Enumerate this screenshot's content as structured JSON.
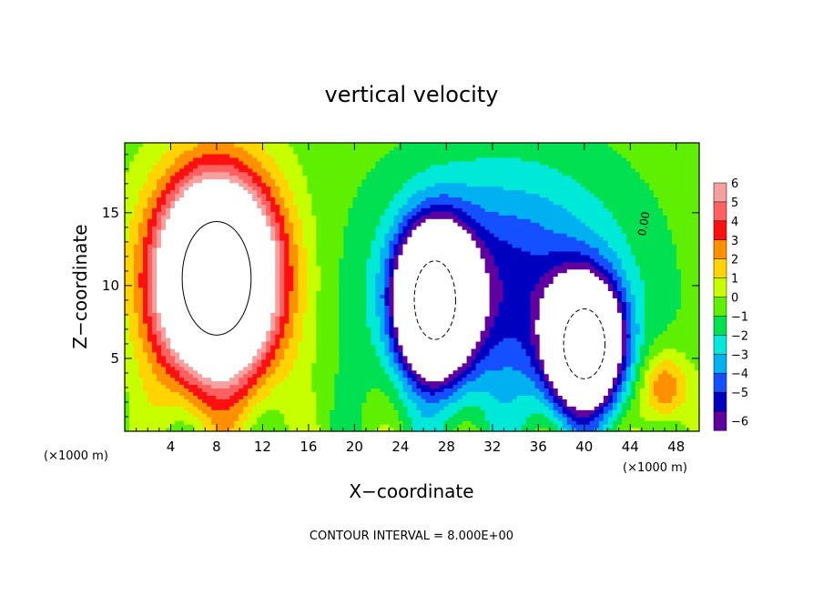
{
  "chart_data": {
    "type": "heatmap",
    "title": "vertical velocity",
    "xlabel": "X−coordinate",
    "ylabel": "Z−coordinate",
    "x_unit_label": "(×1000 m)",
    "x_unit_label_right": "(×1000 m)",
    "xlim": [
      0,
      50
    ],
    "ylim": [
      0,
      19.8
    ],
    "x_ticks": [
      4,
      8,
      12,
      16,
      20,
      24,
      28,
      32,
      36,
      40,
      44,
      48
    ],
    "y_ticks": [
      5,
      10,
      15
    ],
    "footer": "CONTOUR INTERVAL = 8.000E+00",
    "contour_label": "0.00",
    "colorbar": {
      "levels": [
        6,
        5,
        4,
        3,
        2,
        1,
        0,
        -1,
        -2,
        -3,
        -4,
        -5,
        -6
      ],
      "level_labels": [
        "6",
        "5",
        "4",
        "3",
        "2",
        "1",
        "0",
        "−1",
        "−2",
        "−3",
        "−4",
        "−5",
        "−6"
      ],
      "colors": [
        "#f6a0a0",
        "#ff6060",
        "#ff1010",
        "#ff9000",
        "#ffd400",
        "#c8ff00",
        "#5ef000",
        "#00e050",
        "#00e8d8",
        "#00b0f0",
        "#1450ff",
        "#0000c0",
        "#6000a0"
      ]
    },
    "features": [
      {
        "kind": "updraft-core",
        "sign": "positive",
        "center": [
          8,
          10.5
        ],
        "radius": [
          5,
          6.5
        ],
        "peak": 20
      },
      {
        "kind": "updraft",
        "sign": "positive",
        "center": [
          47,
          3
        ],
        "radius": [
          2,
          2.5
        ],
        "peak": 4
      },
      {
        "kind": "downdraft-core",
        "sign": "negative",
        "center": [
          27,
          9
        ],
        "radius": [
          3,
          4.5
        ],
        "peak": -20
      },
      {
        "kind": "downdraft-core",
        "sign": "negative",
        "center": [
          40,
          6
        ],
        "radius": [
          3,
          4
        ],
        "peak": -18
      },
      {
        "kind": "downdraft",
        "sign": "negative",
        "center": [
          33,
          10
        ],
        "radius": [
          10,
          8
        ],
        "peak": -5
      }
    ]
  }
}
